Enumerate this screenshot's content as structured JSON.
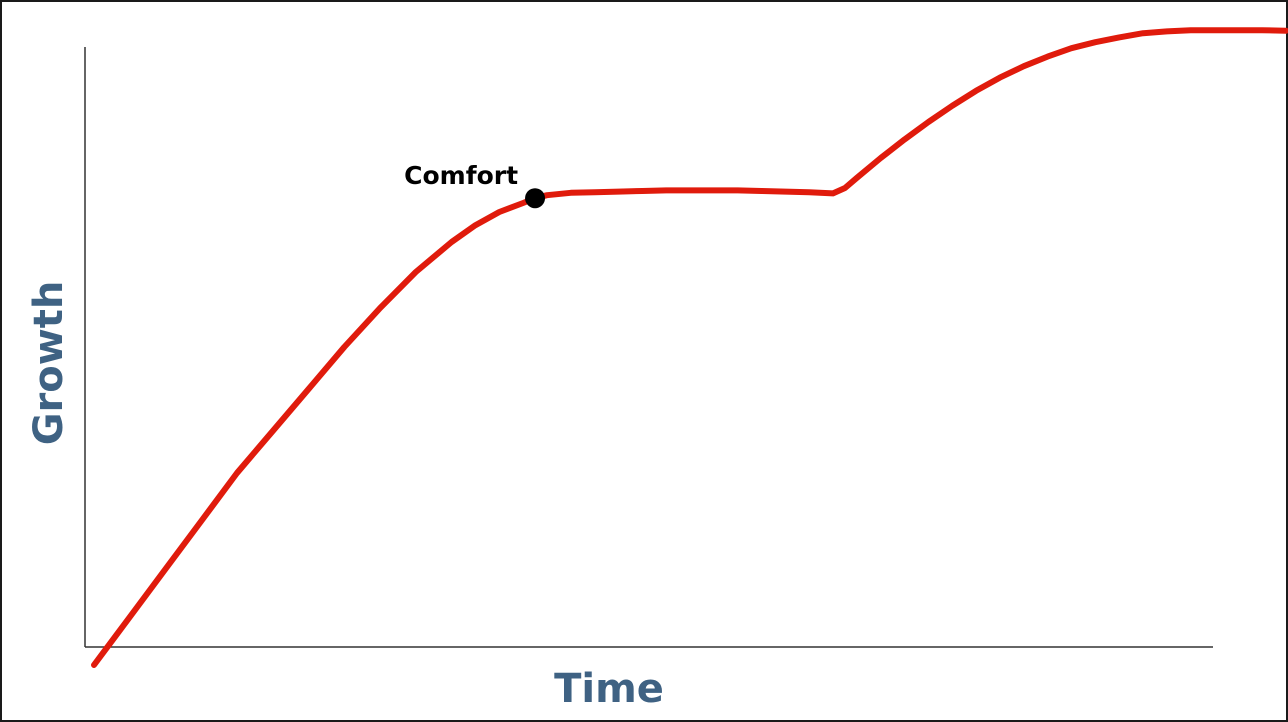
{
  "colors": {
    "curve": "#e01b0c",
    "axis": "#333333",
    "axis_label": "#3f6283",
    "marker": "#000000",
    "annotation": "#000000"
  },
  "chart_data": {
    "type": "line",
    "title": "",
    "xlabel": "Time",
    "ylabel": "Growth",
    "xlim": [
      0,
      100
    ],
    "ylim": [
      0,
      100
    ],
    "grid": false,
    "legend": "none",
    "series": [
      {
        "x": [
          0,
          3,
          6,
          9,
          12,
          15,
          18,
          21,
          24,
          27,
          30,
          32,
          34,
          36,
          37,
          38,
          40,
          42,
          44,
          46,
          48,
          50,
          52,
          54,
          56,
          58,
          60,
          62,
          63,
          64,
          66,
          68,
          70,
          72,
          74,
          76,
          78,
          80,
          82,
          84,
          86,
          88,
          90,
          92,
          94,
          96,
          98,
          100
        ],
        "y": [
          -3,
          5,
          13,
          21,
          29,
          36,
          43,
          50,
          56.5,
          62.5,
          67.5,
          70.3,
          72.5,
          74,
          74.8,
          75.3,
          75.7,
          75.8,
          75.9,
          76,
          76.1,
          76.1,
          76.1,
          76.1,
          76,
          75.9,
          75.8,
          75.6,
          76.5,
          78.2,
          81.5,
          84.6,
          87.5,
          90.2,
          92.7,
          94.9,
          96.8,
          98.4,
          99.8,
          100.8,
          101.6,
          102.3,
          102.6,
          102.8,
          102.8,
          102.8,
          102.8,
          102.7
        ]
      }
    ],
    "annotations": [
      {
        "text": "Comfort",
        "x": 37,
        "y": 74.8
      }
    ]
  }
}
